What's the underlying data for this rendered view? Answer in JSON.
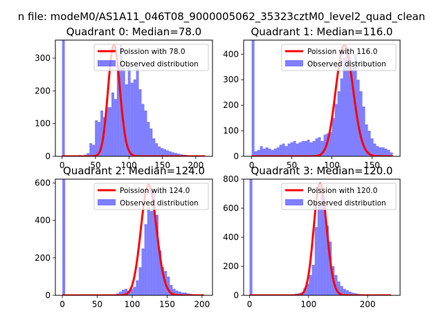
{
  "figure": {
    "suptitle": "n file: modeM0/AS1A11_046T08_9000005062_35323cztM0_level2_quad_clean"
  },
  "colors": {
    "bars": "#0000ff",
    "bars_opacity": 0.5,
    "curve": "#ff0000"
  },
  "chart_data": [
    {
      "type": "histogram+line",
      "title": "Quadrant 0: Median=78.0",
      "median": 78.0,
      "xlim": [
        -10,
        225
      ],
      "ylim": [
        0,
        355
      ],
      "xticks": [
        0,
        50,
        100,
        150,
        200
      ],
      "yticks": [
        0,
        100,
        200,
        300
      ],
      "bin_width": 4.1,
      "bins": [
        [
          0,
          355
        ],
        [
          4.1,
          0
        ],
        [
          8.2,
          0
        ],
        [
          12.3,
          2
        ],
        [
          16.4,
          2
        ],
        [
          20.5,
          3
        ],
        [
          24.6,
          4
        ],
        [
          28.7,
          3
        ],
        [
          32.8,
          5
        ],
        [
          36.9,
          10
        ],
        [
          41,
          40
        ],
        [
          45.1,
          35
        ],
        [
          49.2,
          110
        ],
        [
          53.3,
          105
        ],
        [
          57.4,
          140
        ],
        [
          61.5,
          120
        ],
        [
          65.6,
          150
        ],
        [
          69.7,
          150
        ],
        [
          73.8,
          195
        ],
        [
          77.9,
          175
        ],
        [
          82,
          265
        ],
        [
          86.1,
          340
        ],
        [
          90.2,
          270
        ],
        [
          94.3,
          220
        ],
        [
          98.4,
          275
        ],
        [
          102.5,
          225
        ],
        [
          106.6,
          235
        ],
        [
          110.7,
          270
        ],
        [
          114.8,
          205
        ],
        [
          118.9,
          160
        ],
        [
          123,
          140
        ],
        [
          127.1,
          105
        ],
        [
          131.2,
          85
        ],
        [
          135.3,
          55
        ],
        [
          139.4,
          40
        ],
        [
          143.5,
          30
        ],
        [
          147.6,
          25
        ],
        [
          151.7,
          22
        ],
        [
          155.8,
          18
        ],
        [
          159.9,
          15
        ],
        [
          164,
          12
        ],
        [
          168.1,
          10
        ],
        [
          172.2,
          8
        ],
        [
          176.3,
          6
        ],
        [
          180.4,
          5
        ],
        [
          184.5,
          4
        ],
        [
          188.6,
          3
        ],
        [
          192.7,
          2
        ],
        [
          196.8,
          2
        ],
        [
          200.9,
          1
        ],
        [
          205,
          1
        ],
        [
          209.1,
          1
        ],
        [
          213.2,
          0
        ]
      ],
      "curve": {
        "type": "poisson",
        "mean": 78.0,
        "peak": 340,
        "x_range": [
          0,
          214
        ]
      },
      "legend": [
        "Poission with 78.0",
        "Observed distribution"
      ]
    },
    {
      "type": "histogram+line",
      "title": "Quadrant 1: Median=116.0",
      "median": 116.0,
      "xlim": [
        -10,
        185
      ],
      "ylim": [
        0,
        455
      ],
      "xticks": [
        0,
        50,
        100,
        150
      ],
      "yticks": [
        0,
        100,
        200,
        300,
        400
      ],
      "bin_width": 3.45,
      "bins": [
        [
          0,
          455
        ],
        [
          3.45,
          20
        ],
        [
          6.9,
          25
        ],
        [
          10.35,
          40
        ],
        [
          13.8,
          30
        ],
        [
          17.25,
          35
        ],
        [
          20.7,
          30
        ],
        [
          24.15,
          25
        ],
        [
          27.6,
          30
        ],
        [
          31.05,
          35
        ],
        [
          34.5,
          45
        ],
        [
          37.95,
          50
        ],
        [
          41.4,
          40
        ],
        [
          44.85,
          50
        ],
        [
          48.3,
          55
        ],
        [
          51.75,
          60
        ],
        [
          55.2,
          50
        ],
        [
          58.65,
          55
        ],
        [
          62.1,
          60
        ],
        [
          65.55,
          60
        ],
        [
          69,
          65
        ],
        [
          72.45,
          55
        ],
        [
          75.9,
          60
        ],
        [
          79.35,
          70
        ],
        [
          82.8,
          75
        ],
        [
          86.25,
          60
        ],
        [
          89.7,
          85
        ],
        [
          93.15,
          90
        ],
        [
          96.6,
          95
        ],
        [
          100.05,
          150
        ],
        [
          103.5,
          205
        ],
        [
          106.95,
          255
        ],
        [
          110.4,
          305
        ],
        [
          113.85,
          385
        ],
        [
          117.3,
          420
        ],
        [
          120.75,
          385
        ],
        [
          124.2,
          345
        ],
        [
          127.65,
          400
        ],
        [
          131.1,
          300
        ],
        [
          134.55,
          255
        ],
        [
          138,
          195
        ],
        [
          141.45,
          125
        ],
        [
          144.9,
          100
        ],
        [
          148.35,
          70
        ],
        [
          151.8,
          50
        ],
        [
          155.25,
          40
        ],
        [
          158.7,
          35
        ],
        [
          162.15,
          35
        ],
        [
          165.6,
          30
        ],
        [
          169.05,
          25
        ],
        [
          172.5,
          15
        ],
        [
          175.95,
          0
        ]
      ],
      "curve": {
        "type": "poisson",
        "mean": 116.0,
        "peak": 435,
        "x_range": [
          0,
          176
        ]
      },
      "legend": [
        "Poission with 116.0",
        "Observed distribution"
      ]
    },
    {
      "type": "histogram+line",
      "title": "Quadrant 2: Median=124.0",
      "median": 124.0,
      "xlim": [
        -10,
        215
      ],
      "ylim": [
        0,
        620
      ],
      "xticks": [
        0,
        50,
        100,
        150,
        200
      ],
      "yticks": [
        0,
        200,
        400,
        600
      ],
      "bin_width": 4.05,
      "bins": [
        [
          0,
          620
        ],
        [
          4.05,
          0
        ],
        [
          8.1,
          0
        ],
        [
          12.15,
          0
        ],
        [
          16.2,
          0
        ],
        [
          20.25,
          0
        ],
        [
          24.3,
          0
        ],
        [
          28.35,
          0
        ],
        [
          32.4,
          0
        ],
        [
          36.45,
          0
        ],
        [
          40.5,
          0
        ],
        [
          44.55,
          0
        ],
        [
          48.6,
          1
        ],
        [
          52.65,
          2
        ],
        [
          56.7,
          3
        ],
        [
          60.75,
          3
        ],
        [
          64.8,
          4
        ],
        [
          68.85,
          5
        ],
        [
          72.9,
          6
        ],
        [
          76.95,
          10
        ],
        [
          81,
          20
        ],
        [
          85.05,
          30
        ],
        [
          89.1,
          35
        ],
        [
          93.15,
          25
        ],
        [
          97.2,
          35
        ],
        [
          101.25,
          45
        ],
        [
          105.3,
          80
        ],
        [
          109.35,
          150
        ],
        [
          113.4,
          250
        ],
        [
          117.45,
          380
        ],
        [
          121.5,
          470
        ],
        [
          125.55,
          450
        ],
        [
          129.6,
          560
        ],
        [
          133.65,
          430
        ],
        [
          137.7,
          240
        ],
        [
          141.75,
          150
        ],
        [
          145.8,
          130
        ],
        [
          149.85,
          100
        ],
        [
          153.9,
          55
        ],
        [
          157.95,
          35
        ],
        [
          162,
          25
        ],
        [
          166.05,
          20
        ],
        [
          170.1,
          15
        ],
        [
          174.15,
          15
        ],
        [
          178.2,
          10
        ],
        [
          182.25,
          8
        ],
        [
          186.3,
          6
        ],
        [
          190.35,
          4
        ],
        [
          194.4,
          3
        ],
        [
          198.45,
          2
        ],
        [
          202.5,
          0
        ]
      ],
      "curve": {
        "type": "poisson",
        "mean": 124.0,
        "peak": 590,
        "x_range": [
          0,
          203
        ]
      },
      "legend": [
        "Poission with 124.0",
        "Observed distribution"
      ]
    },
    {
      "type": "histogram+line",
      "title": "Quadrant 3: Median=120.0",
      "median": 120.0,
      "xlim": [
        -10,
        255
      ],
      "ylim": [
        0,
        800
      ],
      "xticks": [
        0,
        100,
        200
      ],
      "yticks": [
        0,
        200,
        400,
        600,
        800
      ],
      "bin_width": 4.8,
      "bins": [
        [
          0,
          800
        ],
        [
          4.8,
          0
        ],
        [
          9.6,
          0
        ],
        [
          14.4,
          0
        ],
        [
          19.2,
          0
        ],
        [
          24,
          0
        ],
        [
          28.8,
          0
        ],
        [
          33.6,
          0
        ],
        [
          38.4,
          0
        ],
        [
          43.2,
          0
        ],
        [
          48,
          0
        ],
        [
          52.8,
          0
        ],
        [
          57.6,
          1
        ],
        [
          62.4,
          2
        ],
        [
          67.2,
          5
        ],
        [
          72,
          8
        ],
        [
          76.8,
          12
        ],
        [
          81.6,
          15
        ],
        [
          86.4,
          20
        ],
        [
          91.2,
          50
        ],
        [
          96,
          80
        ],
        [
          100.8,
          140
        ],
        [
          105.6,
          210
        ],
        [
          110.4,
          470
        ],
        [
          115.2,
          620
        ],
        [
          120,
          760
        ],
        [
          124.8,
          600
        ],
        [
          129.6,
          480
        ],
        [
          134.4,
          370
        ],
        [
          139.2,
          200
        ],
        [
          144,
          140
        ],
        [
          148.8,
          95
        ],
        [
          153.6,
          65
        ],
        [
          158.4,
          45
        ],
        [
          163.2,
          35
        ],
        [
          168,
          25
        ],
        [
          172.8,
          18
        ],
        [
          177.6,
          14
        ],
        [
          182.4,
          10
        ],
        [
          187.2,
          8
        ],
        [
          192,
          6
        ],
        [
          196.8,
          5
        ],
        [
          201.6,
          4
        ],
        [
          206.4,
          3
        ],
        [
          211.2,
          3
        ],
        [
          216,
          2
        ],
        [
          220.8,
          2
        ],
        [
          225.6,
          1
        ],
        [
          230.4,
          1
        ],
        [
          235.2,
          0
        ]
      ],
      "curve": {
        "type": "poisson",
        "mean": 120.0,
        "peak": 770,
        "x_range": [
          0,
          240
        ]
      },
      "legend": [
        "Poission with 120.0",
        "Observed distribution"
      ]
    }
  ]
}
